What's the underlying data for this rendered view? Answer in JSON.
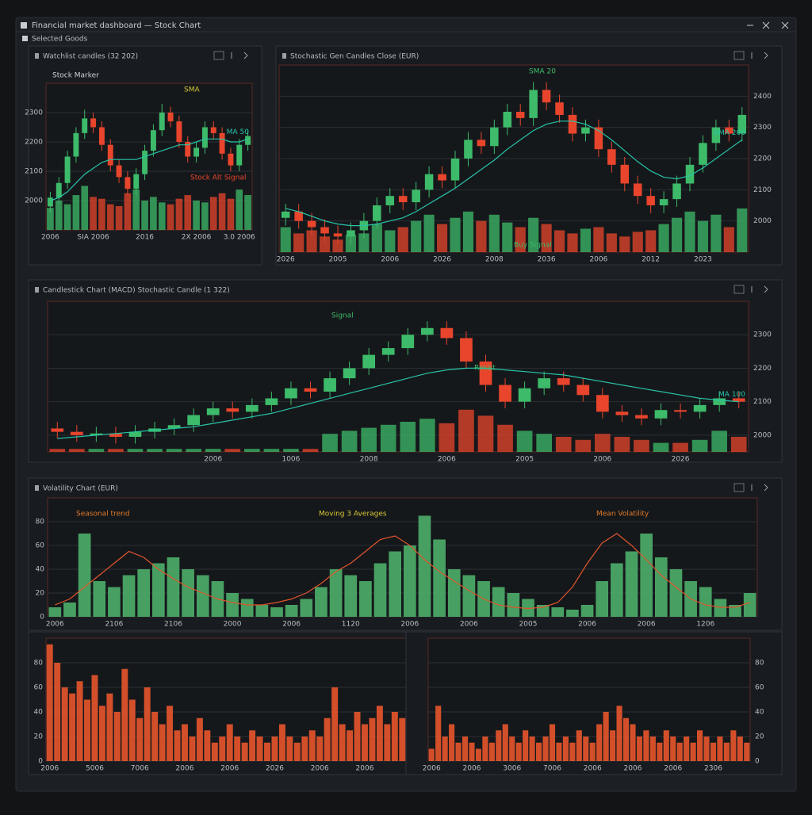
{
  "window": {
    "title": "Financial market dashboard — Stock Chart",
    "tab": "Selected Goods"
  },
  "chart_data": [
    {
      "type": "candlestick",
      "title": "Watchlist candles (32 202)",
      "categories": [
        "2006",
        null,
        null,
        null,
        null,
        "SIA 2006",
        null,
        null,
        null,
        null,
        null,
        "2016",
        null,
        null,
        null,
        null,
        null,
        "2X 2006",
        null,
        null,
        null,
        null,
        "3.0 2006",
        null
      ],
      "open": [
        1980,
        2010,
        2060,
        2150,
        2230,
        2280,
        2250,
        2190,
        2120,
        2080,
        2040,
        2090,
        2170,
        2240,
        2300,
        2270,
        2200,
        2150,
        2180,
        2250,
        2230,
        2160,
        2120,
        2190
      ],
      "high": [
        2030,
        2080,
        2170,
        2250,
        2310,
        2300,
        2270,
        2210,
        2140,
        2100,
        2110,
        2190,
        2260,
        2330,
        2320,
        2290,
        2220,
        2200,
        2270,
        2270,
        2250,
        2180,
        2210,
        2240
      ],
      "low": [
        1960,
        1990,
        2040,
        2130,
        2210,
        2230,
        2170,
        2100,
        2060,
        2020,
        2020,
        2070,
        2150,
        2220,
        2250,
        2180,
        2130,
        2130,
        2160,
        2210,
        2140,
        2100,
        2100,
        2170
      ],
      "close": [
        2010,
        2060,
        2150,
        2230,
        2280,
        2250,
        2190,
        2120,
        2080,
        2040,
        2090,
        2170,
        2240,
        2300,
        2270,
        2200,
        2150,
        2180,
        2250,
        2230,
        2160,
        2120,
        2190,
        2220
      ],
      "volume": [
        60,
        80,
        70,
        95,
        120,
        90,
        85,
        70,
        65,
        100,
        110,
        80,
        90,
        75,
        70,
        85,
        95,
        80,
        75,
        90,
        100,
        85,
        110,
        95
      ],
      "up_color": "#3dbb6a",
      "down_color": "#e8452c",
      "series": [
        {
          "name": "MA 50",
          "color": "#27c4a8",
          "values": [
            2000,
            2010,
            2030,
            2060,
            2090,
            2110,
            2130,
            2140,
            2140,
            2140,
            2140,
            2150,
            2160,
            2170,
            2180,
            2190,
            2190,
            2200,
            2210,
            2210,
            2210,
            2200,
            2200,
            2210
          ]
        }
      ],
      "ylim": [
        1900,
        2400
      ],
      "yticks": [
        2000,
        2100,
        2200,
        2300
      ],
      "y2lim": [
        0,
        400
      ],
      "annotations": [
        "Stock Marker",
        "SMA",
        "Stock Alt Signal"
      ]
    },
    {
      "type": "candlestick",
      "title": "Stochastic Gen Candles Close (EUR)",
      "categories": [
        "2026",
        null,
        null,
        null,
        "2005",
        null,
        null,
        null,
        "2006",
        null,
        null,
        null,
        "2026",
        null,
        null,
        null,
        "2008",
        null,
        null,
        null,
        "2036",
        null,
        null,
        null,
        "2006",
        null,
        null,
        null,
        "2012",
        null,
        null,
        null,
        "2023",
        null,
        null,
        null
      ],
      "open": [
        2010,
        2030,
        2000,
        1980,
        1960,
        1950,
        1970,
        2000,
        2050,
        2080,
        2060,
        2100,
        2150,
        2130,
        2200,
        2260,
        2240,
        2300,
        2350,
        2330,
        2420,
        2380,
        2340,
        2280,
        2300,
        2230,
        2180,
        2120,
        2080,
        2050,
        2070,
        2120,
        2180,
        2250,
        2300,
        2280
      ],
      "high": [
        2055,
        2055,
        2025,
        2005,
        1985,
        1995,
        2025,
        2075,
        2105,
        2105,
        2125,
        2175,
        2175,
        2225,
        2285,
        2285,
        2325,
        2375,
        2375,
        2445,
        2445,
        2405,
        2365,
        2325,
        2325,
        2255,
        2205,
        2145,
        2105,
        2095,
        2145,
        2205,
        2275,
        2325,
        2325,
        2365
      ],
      "low": [
        1985,
        1975,
        1955,
        1935,
        1925,
        1925,
        1945,
        1975,
        2025,
        2035,
        2035,
        2075,
        2105,
        2105,
        2175,
        2215,
        2215,
        2275,
        2305,
        2305,
        2355,
        2315,
        2255,
        2255,
        2205,
        2155,
        2095,
        2055,
        2025,
        2025,
        2045,
        2095,
        2155,
        2225,
        2255,
        2255
      ],
      "close": [
        2030,
        2000,
        1980,
        1960,
        1950,
        1970,
        2000,
        2050,
        2080,
        2060,
        2100,
        2150,
        2130,
        2200,
        2260,
        2240,
        2300,
        2350,
        2330,
        2420,
        2380,
        2340,
        2280,
        2300,
        2230,
        2180,
        2120,
        2080,
        2050,
        2070,
        2120,
        2180,
        2250,
        2300,
        2280,
        2340
      ],
      "volume": [
        80,
        60,
        70,
        50,
        40,
        55,
        60,
        90,
        70,
        80,
        100,
        120,
        90,
        110,
        130,
        100,
        120,
        95,
        80,
        110,
        90,
        70,
        60,
        75,
        80,
        60,
        50,
        65,
        70,
        90,
        110,
        130,
        100,
        120,
        80,
        140
      ],
      "up_color": "#3dbb6a",
      "down_color": "#e8452c",
      "series": [
        {
          "name": "SMA 200",
          "color": "#27c4a8",
          "values": [
            2040,
            2030,
            2015,
            2000,
            1990,
            1985,
            1985,
            1990,
            2000,
            2010,
            2030,
            2055,
            2080,
            2105,
            2135,
            2165,
            2195,
            2230,
            2260,
            2290,
            2310,
            2320,
            2320,
            2310,
            2290,
            2260,
            2225,
            2190,
            2160,
            2140,
            2135,
            2145,
            2170,
            2200,
            2230,
            2260
          ]
        }
      ],
      "ylim": [
        1900,
        2500
      ],
      "yticks": [
        2000,
        2100,
        2200,
        2300,
        2400
      ],
      "y2lim": [
        0,
        600
      ],
      "annotations": [
        "SMA 20",
        "Buy Signal"
      ]
    },
    {
      "type": "candlestick",
      "title": "Candlestick Chart (MACD)  Stochastic Candle (1 322)",
      "categories": [
        null,
        null,
        null,
        null,
        null,
        null,
        null,
        null,
        "2006",
        null,
        null,
        null,
        "1006",
        null,
        null,
        null,
        "2008",
        null,
        null,
        null,
        "2006",
        null,
        null,
        null,
        "2005",
        null,
        null,
        null,
        "2006",
        null,
        null,
        null,
        "2026",
        null,
        null,
        null
      ],
      "open": [
        2020,
        2010,
        2000,
        2005,
        1995,
        2010,
        2020,
        2030,
        2060,
        2080,
        2070,
        2090,
        2110,
        2140,
        2130,
        2170,
        2200,
        2240,
        2260,
        2300,
        2320,
        2290,
        2220,
        2150,
        2100,
        2140,
        2170,
        2150,
        2120,
        2070,
        2060,
        2050,
        2075,
        2070,
        2090,
        2110
      ],
      "high": [
        2040,
        2030,
        2025,
        2025,
        2030,
        2040,
        2050,
        2080,
        2100,
        2100,
        2110,
        2130,
        2160,
        2160,
        2190,
        2220,
        2260,
        2280,
        2320,
        2340,
        2340,
        2310,
        2240,
        2170,
        2160,
        2190,
        2190,
        2170,
        2140,
        2090,
        2080,
        2095,
        2095,
        2110,
        2130,
        2130
      ],
      "low": [
        1990,
        1980,
        1980,
        1975,
        1975,
        1990,
        2000,
        2010,
        2040,
        2050,
        2050,
        2070,
        2090,
        2110,
        2110,
        2150,
        2180,
        2220,
        2240,
        2280,
        2270,
        2200,
        2130,
        2080,
        2080,
        2120,
        2130,
        2100,
        2050,
        2040,
        2030,
        2030,
        2050,
        2050,
        2070,
        2080
      ],
      "close": [
        2010,
        2000,
        2005,
        1995,
        2010,
        2020,
        2030,
        2060,
        2080,
        2070,
        2090,
        2110,
        2140,
        2130,
        2170,
        2200,
        2240,
        2260,
        2300,
        2320,
        2290,
        2220,
        2150,
        2100,
        2140,
        2170,
        2150,
        2120,
        2070,
        2060,
        2050,
        2075,
        2070,
        2090,
        2110,
        2100
      ],
      "volume": [
        10,
        10,
        10,
        10,
        10,
        10,
        10,
        10,
        10,
        10,
        10,
        10,
        10,
        10,
        60,
        70,
        80,
        90,
        100,
        110,
        95,
        140,
        120,
        90,
        70,
        60,
        50,
        40,
        60,
        50,
        40,
        30,
        30,
        40,
        70,
        50
      ],
      "up_color": "#3dbb6a",
      "down_color": "#e8452c",
      "series": [
        {
          "name": "MA 100",
          "color": "#27c4a8",
          "values": [
            1990,
            1995,
            2000,
            2005,
            2010,
            2015,
            2020,
            2025,
            2035,
            2045,
            2055,
            2065,
            2080,
            2095,
            2110,
            2125,
            2140,
            2155,
            2170,
            2185,
            2195,
            2200,
            2200,
            2195,
            2190,
            2185,
            2180,
            2170,
            2160,
            2150,
            2140,
            2130,
            2120,
            2110,
            2105,
            2100
          ]
        }
      ],
      "ylim": [
        1950,
        2400
      ],
      "yticks": [
        2000,
        2100,
        2200,
        2300
      ],
      "y2lim": [
        0,
        500
      ],
      "annotations": [
        "Signal",
        "Resist"
      ]
    },
    {
      "type": "bar",
      "title": "Volatility Chart (EUR)",
      "categories": [
        "2006",
        null,
        null,
        null,
        "2106",
        null,
        null,
        null,
        "2106",
        null,
        null,
        null,
        "2000",
        null,
        null,
        null,
        "2006",
        null,
        null,
        null,
        "1120",
        null,
        null,
        null,
        "2006",
        null,
        null,
        null,
        "2006",
        null,
        null,
        null,
        "2005",
        null,
        null,
        null,
        "2006",
        null,
        null,
        null,
        "2006",
        null,
        null,
        null,
        "1206",
        null,
        null,
        null
      ],
      "series": [
        {
          "color": "#4caf6a",
          "values": [
            8,
            12,
            70,
            30,
            25,
            35,
            40,
            45,
            50,
            40,
            35,
            30,
            20,
            15,
            10,
            8,
            10,
            15,
            25,
            40,
            35,
            30,
            45,
            55,
            60,
            85,
            65,
            40,
            35,
            30,
            25,
            20,
            15,
            10,
            8,
            6,
            10,
            30,
            45,
            55,
            70,
            50,
            40,
            30,
            25,
            15,
            10,
            20
          ]
        }
      ],
      "lines": [
        {
          "color": "#e0552c",
          "values": [
            10,
            15,
            25,
            35,
            45,
            55,
            50,
            40,
            32,
            25,
            20,
            15,
            12,
            10,
            10,
            12,
            15,
            20,
            28,
            38,
            45,
            55,
            65,
            68,
            60,
            48,
            38,
            30,
            22,
            15,
            10,
            8,
            7,
            8,
            12,
            25,
            45,
            62,
            70,
            60,
            48,
            35,
            25,
            15,
            10,
            8,
            8,
            12
          ]
        }
      ],
      "ylim": [
        0,
        100
      ],
      "yticks": [
        0,
        20,
        40,
        60,
        80
      ],
      "annotations": [
        "Seasonal trend",
        "Moving 3 Averages",
        "Mean Volatility"
      ]
    },
    {
      "type": "bar",
      "categories": [
        "2006",
        null,
        null,
        null,
        null,
        null,
        "5006",
        null,
        null,
        null,
        null,
        null,
        "7006",
        null,
        null,
        null,
        null,
        null,
        "2006",
        null,
        null,
        null,
        null,
        null,
        "2006",
        null,
        null,
        null,
        null,
        null,
        "2026",
        null,
        null,
        null,
        null,
        null,
        "2006",
        null,
        null,
        null,
        null,
        null,
        "2006",
        null,
        null,
        null,
        null,
        null
      ],
      "series": [
        {
          "color": "#e8552c",
          "values": [
            95,
            80,
            60,
            55,
            65,
            50,
            70,
            45,
            55,
            40,
            75,
            50,
            35,
            60,
            40,
            30,
            45,
            25,
            30,
            20,
            35,
            25,
            15,
            20,
            30,
            20,
            15,
            25,
            20,
            15,
            20,
            30,
            20,
            15,
            20,
            25,
            20,
            35,
            60,
            30,
            25,
            40,
            30,
            35,
            45,
            30,
            40,
            35
          ]
        }
      ],
      "ylim": [
        0,
        100
      ],
      "yticks": [
        0,
        20,
        40,
        60,
        80
      ]
    },
    {
      "type": "bar",
      "categories": [
        "2006",
        null,
        null,
        null,
        null,
        null,
        "2006",
        null,
        null,
        null,
        null,
        null,
        "3006",
        null,
        null,
        null,
        null,
        null,
        "7006",
        null,
        null,
        null,
        null,
        null,
        "2006",
        null,
        null,
        null,
        null,
        null,
        "2006",
        null,
        null,
        null,
        null,
        null,
        "2006",
        null,
        null,
        null,
        null,
        null,
        "2306",
        null,
        null,
        null,
        null,
        null
      ],
      "series": [
        {
          "color": "#e8552c",
          "values": [
            10,
            45,
            20,
            30,
            15,
            20,
            15,
            10,
            20,
            15,
            25,
            30,
            20,
            15,
            25,
            20,
            15,
            20,
            30,
            15,
            20,
            15,
            25,
            20,
            15,
            30,
            40,
            25,
            45,
            35,
            30,
            20,
            25,
            20,
            15,
            25,
            20,
            15,
            20,
            15,
            25,
            20,
            15,
            20,
            15,
            25,
            20,
            15
          ]
        }
      ],
      "ylim": [
        0,
        100
      ],
      "yticks": [
        0,
        20,
        40,
        60,
        80
      ]
    }
  ]
}
